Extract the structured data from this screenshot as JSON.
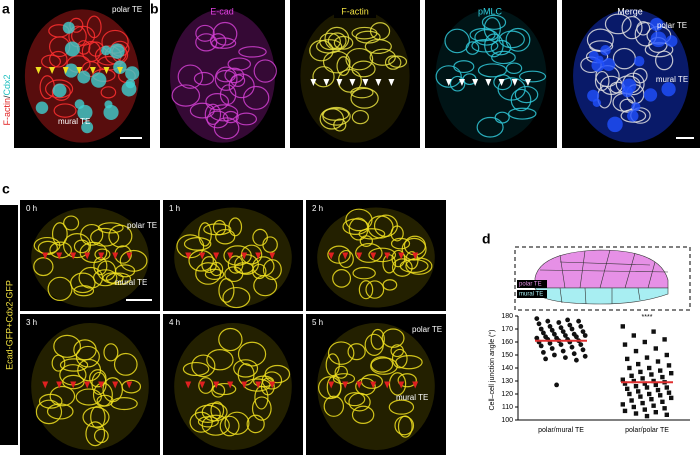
{
  "panels": {
    "a": {
      "label": "a",
      "stain": [
        "F-actin",
        "/",
        "Cdx2"
      ],
      "polar": "polar TE",
      "mural": "mural TE"
    },
    "b": {
      "label": "b",
      "channels": [
        "E-cad",
        "F-actin",
        "pMLC",
        "Merge"
      ],
      "polar": "polar TE",
      "mural": "mural TE"
    },
    "c": {
      "label": "c",
      "side": "Ecad-GFP+Cdx2-GFP",
      "times": [
        "0 h",
        "1 h",
        "2 h",
        "3 h",
        "4 h",
        "5 h"
      ],
      "polar": "polar TE",
      "mural": "mural TE"
    },
    "d": {
      "label": "d",
      "polar": "polar TE",
      "mural": "mural TE"
    }
  },
  "chart_data": {
    "type": "dot",
    "ylabel": "Cell–cell junction angle (°)",
    "categories": [
      "polar/mural TE",
      "polar/polar TE"
    ],
    "values": [
      [
        178,
        177,
        176,
        176,
        175,
        174,
        173,
        172,
        172,
        171,
        170,
        170,
        169,
        168,
        168,
        167,
        166,
        166,
        165,
        165,
        164,
        164,
        163,
        163,
        162,
        162,
        161,
        161,
        160,
        160,
        159,
        158,
        158,
        157,
        156,
        155,
        154,
        153,
        152,
        151,
        150,
        149,
        148,
        147,
        146,
        127
      ],
      [
        172,
        168,
        165,
        162,
        160,
        158,
        155,
        153,
        150,
        148,
        147,
        145,
        143,
        142,
        140,
        140,
        138,
        137,
        136,
        135,
        134,
        133,
        132,
        131,
        130,
        130,
        129,
        128,
        128,
        127,
        126,
        125,
        125,
        124,
        123,
        122,
        121,
        120,
        120,
        119,
        118,
        117,
        116,
        115,
        114,
        113,
        112,
        111,
        110,
        109,
        108,
        107,
        106,
        105,
        104,
        103
      ]
    ],
    "means": [
      161,
      129
    ],
    "annotation": "****",
    "ylim": [
      100,
      180
    ],
    "yticks": [
      100,
      110,
      120,
      130,
      140,
      150,
      160,
      170,
      180
    ],
    "color": "#111111",
    "mean_color": "#e03030"
  }
}
